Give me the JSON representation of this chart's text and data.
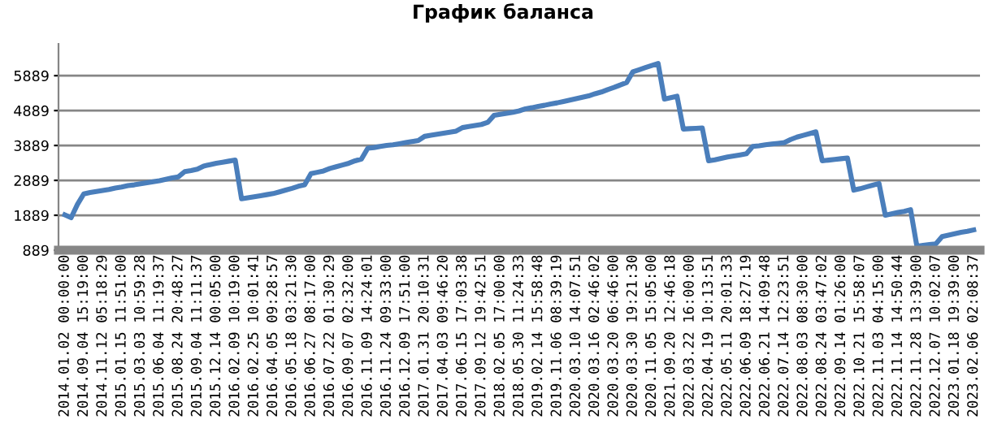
{
  "chart_data": {
    "type": "line",
    "title": "График баланса",
    "categories": [
      "2014.01.02 00:00:00",
      null,
      null,
      "2014.09.04 15:19:00",
      null,
      null,
      "2014.11.12 05:18:29",
      null,
      null,
      "2015.01.15 11:51:00",
      null,
      null,
      "2015.03.03 10:59:28",
      null,
      null,
      "2015.06.04 11:19:37",
      null,
      null,
      "2015.08.24 20:48:27",
      null,
      null,
      "2015.09.04 11:11:37",
      null,
      null,
      "2015.12.14 00:05:00",
      null,
      null,
      "2016.02.09 10:19:00",
      null,
      null,
      "2016.02.25 10:01:41",
      null,
      null,
      "2016.04.05 09:28:57",
      null,
      null,
      "2016.05.18 03:21:30",
      null,
      null,
      "2016.06.27 08:17:00",
      null,
      null,
      "2016.07.22 01:30:29",
      null,
      null,
      "2016.09.07 02:32:00",
      null,
      null,
      "2016.11.09 14:24:01",
      null,
      null,
      "2016.11.24 09:33:00",
      null,
      null,
      "2016.12.09 17:51:00",
      null,
      null,
      "2017.01.31 20:10:31",
      null,
      null,
      "2017.04.03 09:46:20",
      null,
      null,
      "2017.06.15 17:03:38",
      null,
      null,
      "2017.09.12 19:42:51",
      null,
      null,
      "2018.02.05 17:00:00",
      null,
      null,
      "2018.05.30 11:24:33",
      null,
      null,
      "2019.02.14 15:58:48",
      null,
      null,
      "2019.11.06 08:39:19",
      null,
      null,
      "2020.03.10 14:07:51",
      null,
      null,
      "2020.03.16 02:46:02",
      null,
      null,
      "2020.03.20 06:46:00",
      null,
      null,
      "2020.03.30 19:21:30",
      null,
      null,
      "2020.11.05 15:05:00",
      null,
      null,
      "2021.09.20 12:46:18",
      null,
      null,
      "2022.03.22 16:00:00",
      null,
      null,
      "2022.04.19 10:13:51",
      null,
      null,
      "2022.05.11 20:01:33",
      null,
      null,
      "2022.06.09 18:27:19",
      null,
      null,
      "2022.06.21 14:09:48",
      null,
      null,
      "2022.07.14 12:23:51",
      null,
      null,
      "2022.08.03 08:30:00",
      null,
      null,
      "2022.08.24 03:47:02",
      null,
      null,
      "2022.09.14 01:26:00",
      null,
      null,
      "2022.10.21 15:58:07",
      null,
      null,
      "2022.11.03 04:15:00",
      null,
      null,
      "2022.11.14 14:50:44",
      null,
      null,
      "2022.11.28 13:39:00",
      null,
      null,
      "2022.12.07 10:02:07",
      null,
      null,
      "2023.01.18 19:39:00",
      null,
      null,
      "2023.02.06 02:08:37"
    ],
    "series": [
      {
        "color": "#4a7ebb",
        "values": [
          1900,
          1820,
          2200,
          2500,
          2540,
          2570,
          2600,
          2630,
          2670,
          2700,
          2740,
          2760,
          2790,
          2820,
          2850,
          2880,
          2920,
          2960,
          2990,
          3140,
          3170,
          3210,
          3300,
          3340,
          3380,
          3410,
          3440,
          3470,
          2360,
          2390,
          2420,
          2450,
          2480,
          2510,
          2560,
          2610,
          2660,
          2720,
          2760,
          3080,
          3120,
          3160,
          3230,
          3280,
          3330,
          3380,
          3450,
          3500,
          3810,
          3830,
          3860,
          3890,
          3910,
          3940,
          3970,
          4000,
          4030,
          4150,
          4180,
          4210,
          4240,
          4270,
          4300,
          4400,
          4430,
          4460,
          4490,
          4550,
          4750,
          4780,
          4810,
          4840,
          4880,
          4940,
          4970,
          5010,
          5040,
          5080,
          5110,
          5150,
          5190,
          5230,
          5270,
          5310,
          5370,
          5420,
          5490,
          5550,
          5620,
          5690,
          6000,
          6060,
          6120,
          6180,
          6240,
          5220,
          5260,
          5300,
          4360,
          4370,
          4380,
          4390,
          3450,
          3480,
          3520,
          3560,
          3590,
          3620,
          3650,
          3860,
          3880,
          3910,
          3930,
          3950,
          3970,
          4060,
          4130,
          4180,
          4230,
          4280,
          3450,
          3470,
          3490,
          3510,
          3530,
          2610,
          2650,
          2700,
          2750,
          2800,
          1890,
          1930,
          1970,
          2000,
          2050,
          1000,
          1030,
          1050,
          1070,
          1280,
          1320,
          1360,
          1400,
          1430,
          1470
        ]
      }
    ],
    "ylim": [
      889,
      6800
    ],
    "yticks": [
      889,
      1889,
      2889,
      3889,
      4889,
      5889
    ],
    "grid": "y",
    "marker": "none",
    "line_style": "solid",
    "legend": false
  }
}
